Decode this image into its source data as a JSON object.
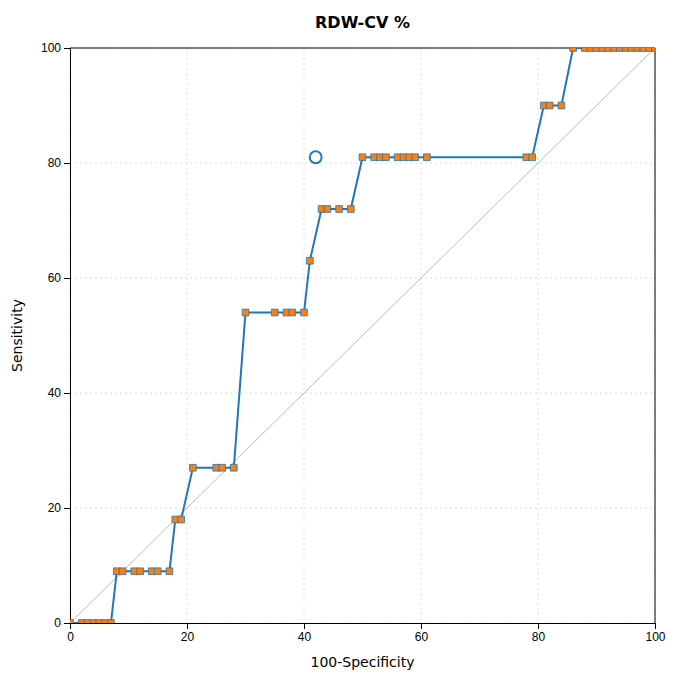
{
  "chart_data": {
    "type": "line",
    "title": "RDW-CV %",
    "xlabel": "100-Specificity",
    "ylabel": "Sensitivity",
    "xlim": [
      0,
      100
    ],
    "ylim": [
      0,
      100
    ],
    "xticks": [
      0,
      20,
      40,
      60,
      80,
      100
    ],
    "yticks": [
      0,
      20,
      40,
      60,
      80,
      100
    ],
    "grid": true,
    "series": [
      {
        "type": "line",
        "line_style": "solid",
        "x": [
          0,
          100
        ],
        "values": [
          0,
          100
        ]
      },
      {
        "type": "line",
        "line_style": "solid",
        "marker": "square",
        "x": [
          0,
          2,
          3,
          4,
          5,
          6,
          7,
          8,
          9,
          11,
          12,
          14,
          15,
          17,
          18,
          19,
          21,
          25,
          26,
          28,
          30,
          35,
          37,
          38,
          40,
          41,
          43,
          44,
          46,
          48,
          50,
          52,
          53,
          54,
          56,
          57,
          58,
          59,
          61,
          78,
          79,
          81,
          82,
          84,
          86,
          88,
          89,
          90,
          91,
          92,
          93,
          94,
          95,
          96,
          97,
          98,
          99,
          100
        ],
        "values": [
          0,
          0,
          0,
          0,
          0,
          0,
          0,
          9,
          9,
          9,
          9,
          9,
          9,
          9,
          18,
          18,
          27,
          27,
          27,
          27,
          54,
          54,
          54,
          54,
          54,
          63,
          72,
          72,
          72,
          72,
          81,
          81,
          81,
          81,
          81,
          81,
          81,
          81,
          81,
          81,
          81,
          90,
          90,
          90,
          100,
          100,
          100,
          100,
          100,
          100,
          100,
          100,
          100,
          100,
          100,
          100,
          100,
          100
        ]
      },
      {
        "type": "scatter",
        "marker": "circle",
        "x": [
          42
        ],
        "values": [
          81
        ]
      }
    ]
  }
}
